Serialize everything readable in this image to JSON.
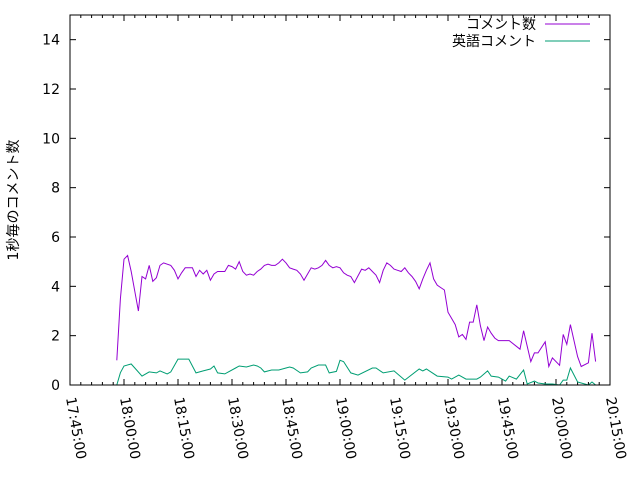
{
  "chart_data": {
    "type": "line",
    "title": "",
    "xlabel": "",
    "ylabel": "1秒毎のコメント数",
    "xlim": [
      "17:45:00",
      "20:15:00"
    ],
    "ylim": [
      0,
      15
    ],
    "x_ticks": [
      "17:45:00",
      "18:00:00",
      "18:15:00",
      "18:30:00",
      "18:45:00",
      "19:00:00",
      "19:15:00",
      "19:30:00",
      "19:45:00",
      "20:00:00",
      "20:15:00"
    ],
    "y_ticks": [
      "0",
      "2",
      "4",
      "6",
      "8",
      "10",
      "12",
      "14"
    ],
    "grid": false,
    "legend_position": "top-right",
    "series": [
      {
        "name": "コメント数",
        "color": "#9400d3",
        "points": [
          [
            "17:58",
            1.0
          ],
          [
            "17:59",
            3.5
          ],
          [
            "18:00",
            5.1
          ],
          [
            "18:01",
            5.25
          ],
          [
            "18:02",
            4.6
          ],
          [
            "18:03",
            3.8
          ],
          [
            "18:04",
            3.0
          ],
          [
            "18:05",
            4.4
          ],
          [
            "18:06",
            4.3
          ],
          [
            "18:07",
            4.85
          ],
          [
            "18:08",
            4.2
          ],
          [
            "18:09",
            4.35
          ],
          [
            "18:10",
            4.85
          ],
          [
            "18:11",
            4.95
          ],
          [
            "18:13",
            4.85
          ],
          [
            "18:14",
            4.65
          ],
          [
            "18:15",
            4.3
          ],
          [
            "18:16",
            4.55
          ],
          [
            "18:17",
            4.75
          ],
          [
            "18:18",
            4.75
          ],
          [
            "18:19",
            4.75
          ],
          [
            "18:20",
            4.4
          ],
          [
            "18:21",
            4.65
          ],
          [
            "18:22",
            4.5
          ],
          [
            "18:23",
            4.65
          ],
          [
            "18:24",
            4.25
          ],
          [
            "18:25",
            4.5
          ],
          [
            "18:26",
            4.6
          ],
          [
            "18:27",
            4.6
          ],
          [
            "18:28",
            4.6
          ],
          [
            "18:29",
            4.85
          ],
          [
            "18:30",
            4.8
          ],
          [
            "18:31",
            4.7
          ],
          [
            "18:32",
            5.0
          ],
          [
            "18:33",
            4.6
          ],
          [
            "18:34",
            4.45
          ],
          [
            "18:35",
            4.5
          ],
          [
            "18:36",
            4.45
          ],
          [
            "18:37",
            4.6
          ],
          [
            "18:38",
            4.7
          ],
          [
            "18:39",
            4.85
          ],
          [
            "18:40",
            4.9
          ],
          [
            "18:41",
            4.85
          ],
          [
            "18:42",
            4.85
          ],
          [
            "18:43",
            4.95
          ],
          [
            "18:44",
            5.1
          ],
          [
            "18:45",
            4.95
          ],
          [
            "18:46",
            4.75
          ],
          [
            "18:47",
            4.7
          ],
          [
            "18:48",
            4.65
          ],
          [
            "18:49",
            4.5
          ],
          [
            "18:50",
            4.25
          ],
          [
            "18:51",
            4.5
          ],
          [
            "18:52",
            4.75
          ],
          [
            "18:53",
            4.7
          ],
          [
            "18:54",
            4.75
          ],
          [
            "18:55",
            4.85
          ],
          [
            "18:56",
            5.05
          ],
          [
            "18:57",
            4.85
          ],
          [
            "18:58",
            4.75
          ],
          [
            "18:59",
            4.8
          ],
          [
            "19:00",
            4.75
          ],
          [
            "19:01",
            4.55
          ],
          [
            "19:02",
            4.45
          ],
          [
            "19:03",
            4.4
          ],
          [
            "19:04",
            4.15
          ],
          [
            "19:06",
            4.7
          ],
          [
            "19:07",
            4.65
          ],
          [
            "19:08",
            4.75
          ],
          [
            "19:09",
            4.6
          ],
          [
            "19:10",
            4.45
          ],
          [
            "19:11",
            4.15
          ],
          [
            "19:12",
            4.65
          ],
          [
            "19:13",
            4.95
          ],
          [
            "19:14",
            4.85
          ],
          [
            "19:15",
            4.7
          ],
          [
            "19:16",
            4.65
          ],
          [
            "19:17",
            4.6
          ],
          [
            "19:18",
            4.75
          ],
          [
            "19:19",
            4.55
          ],
          [
            "19:20",
            4.4
          ],
          [
            "19:21",
            4.2
          ],
          [
            "19:22",
            3.9
          ],
          [
            "19:23",
            4.3
          ],
          [
            "19:24",
            4.65
          ],
          [
            "19:25",
            4.95
          ],
          [
            "19:26",
            4.3
          ],
          [
            "19:27",
            4.05
          ],
          [
            "19:28",
            3.95
          ],
          [
            "19:29",
            3.85
          ],
          [
            "19:30",
            2.95
          ],
          [
            "19:31",
            2.7
          ],
          [
            "19:32",
            2.45
          ],
          [
            "19:33",
            1.95
          ],
          [
            "19:34",
            2.05
          ],
          [
            "19:35",
            1.85
          ],
          [
            "19:36",
            2.55
          ],
          [
            "19:37",
            2.55
          ],
          [
            "19:38",
            3.25
          ],
          [
            "19:39",
            2.4
          ],
          [
            "19:40",
            1.8
          ],
          [
            "19:41",
            2.35
          ],
          [
            "19:42",
            2.1
          ],
          [
            "19:43",
            1.9
          ],
          [
            "19:44",
            1.8
          ],
          [
            "19:47",
            1.8
          ],
          [
            "19:50",
            1.45
          ],
          [
            "19:51",
            2.2
          ],
          [
            "19:53",
            0.95
          ],
          [
            "19:54",
            1.3
          ],
          [
            "19:55",
            1.3
          ],
          [
            "19:57",
            1.75
          ],
          [
            "19:58",
            0.75
          ],
          [
            "19:59",
            1.1
          ],
          [
            "20:01",
            0.8
          ],
          [
            "20:02",
            2.05
          ],
          [
            "20:03",
            1.65
          ],
          [
            "20:04",
            2.45
          ],
          [
            "20:06",
            1.15
          ],
          [
            "20:07",
            0.75
          ],
          [
            "20:09",
            0.9
          ],
          [
            "20:10",
            2.1
          ],
          [
            "20:11",
            0.95
          ]
        ]
      },
      {
        "name": "英語コメント",
        "color": "#009e73",
        "points": [
          [
            "17:58",
            0
          ],
          [
            "17:59",
            0.5
          ],
          [
            "18:00",
            0.77
          ],
          [
            "18:02",
            0.85
          ],
          [
            "18:03",
            0.69
          ],
          [
            "18:05",
            0.36
          ],
          [
            "18:07",
            0.53
          ],
          [
            "18:09",
            0.49
          ],
          [
            "18:10",
            0.57
          ],
          [
            "18:12",
            0.45
          ],
          [
            "18:13",
            0.53
          ],
          [
            "18:15",
            1.05
          ],
          [
            "18:18",
            1.05
          ],
          [
            "18:20",
            0.49
          ],
          [
            "18:22",
            0.57
          ],
          [
            "18:24",
            0.65
          ],
          [
            "18:25",
            0.77
          ],
          [
            "18:26",
            0.49
          ],
          [
            "18:28",
            0.45
          ],
          [
            "18:29",
            0.53
          ],
          [
            "18:31",
            0.69
          ],
          [
            "18:32",
            0.77
          ],
          [
            "18:34",
            0.73
          ],
          [
            "18:36",
            0.81
          ],
          [
            "18:37",
            0.77
          ],
          [
            "18:38",
            0.69
          ],
          [
            "18:39",
            0.53
          ],
          [
            "18:41",
            0.61
          ],
          [
            "18:43",
            0.61
          ],
          [
            "18:45",
            0.69
          ],
          [
            "18:46",
            0.73
          ],
          [
            "18:47",
            0.69
          ],
          [
            "18:49",
            0.49
          ],
          [
            "18:51",
            0.53
          ],
          [
            "18:52",
            0.69
          ],
          [
            "18:54",
            0.81
          ],
          [
            "18:56",
            0.81
          ],
          [
            "18:57",
            0.49
          ],
          [
            "18:59",
            0.55
          ],
          [
            "19:00",
            1.0
          ],
          [
            "19:01",
            0.95
          ],
          [
            "19:03",
            0.49
          ],
          [
            "19:05",
            0.4
          ],
          [
            "19:09",
            0.69
          ],
          [
            "19:10",
            0.69
          ],
          [
            "19:12",
            0.49
          ],
          [
            "19:15",
            0.57
          ],
          [
            "19:18",
            0.2
          ],
          [
            "19:22",
            0.65
          ],
          [
            "19:23",
            0.57
          ],
          [
            "19:24",
            0.65
          ],
          [
            "19:27",
            0.36
          ],
          [
            "19:30",
            0.32
          ],
          [
            "19:31",
            0.24
          ],
          [
            "19:33",
            0.4
          ],
          [
            "19:35",
            0.24
          ],
          [
            "19:38",
            0.24
          ],
          [
            "19:39",
            0.32
          ],
          [
            "19:41",
            0.57
          ],
          [
            "19:42",
            0.36
          ],
          [
            "19:44",
            0.32
          ],
          [
            "19:46",
            0.16
          ],
          [
            "19:47",
            0.36
          ],
          [
            "19:49",
            0.24
          ],
          [
            "19:51",
            0.61
          ],
          [
            "19:52",
            0.04
          ],
          [
            "19:54",
            0.16
          ],
          [
            "19:55",
            0.08
          ],
          [
            "19:57",
            0.04
          ],
          [
            "19:59",
            0.04
          ],
          [
            "20:01",
            0
          ],
          [
            "20:02",
            0.2
          ],
          [
            "20:03",
            0.2
          ],
          [
            "20:04",
            0.69
          ],
          [
            "20:06",
            0.12
          ],
          [
            "20:07",
            0.08
          ],
          [
            "20:09",
            0
          ],
          [
            "20:10",
            0.12
          ],
          [
            "20:11",
            0
          ]
        ]
      }
    ]
  }
}
